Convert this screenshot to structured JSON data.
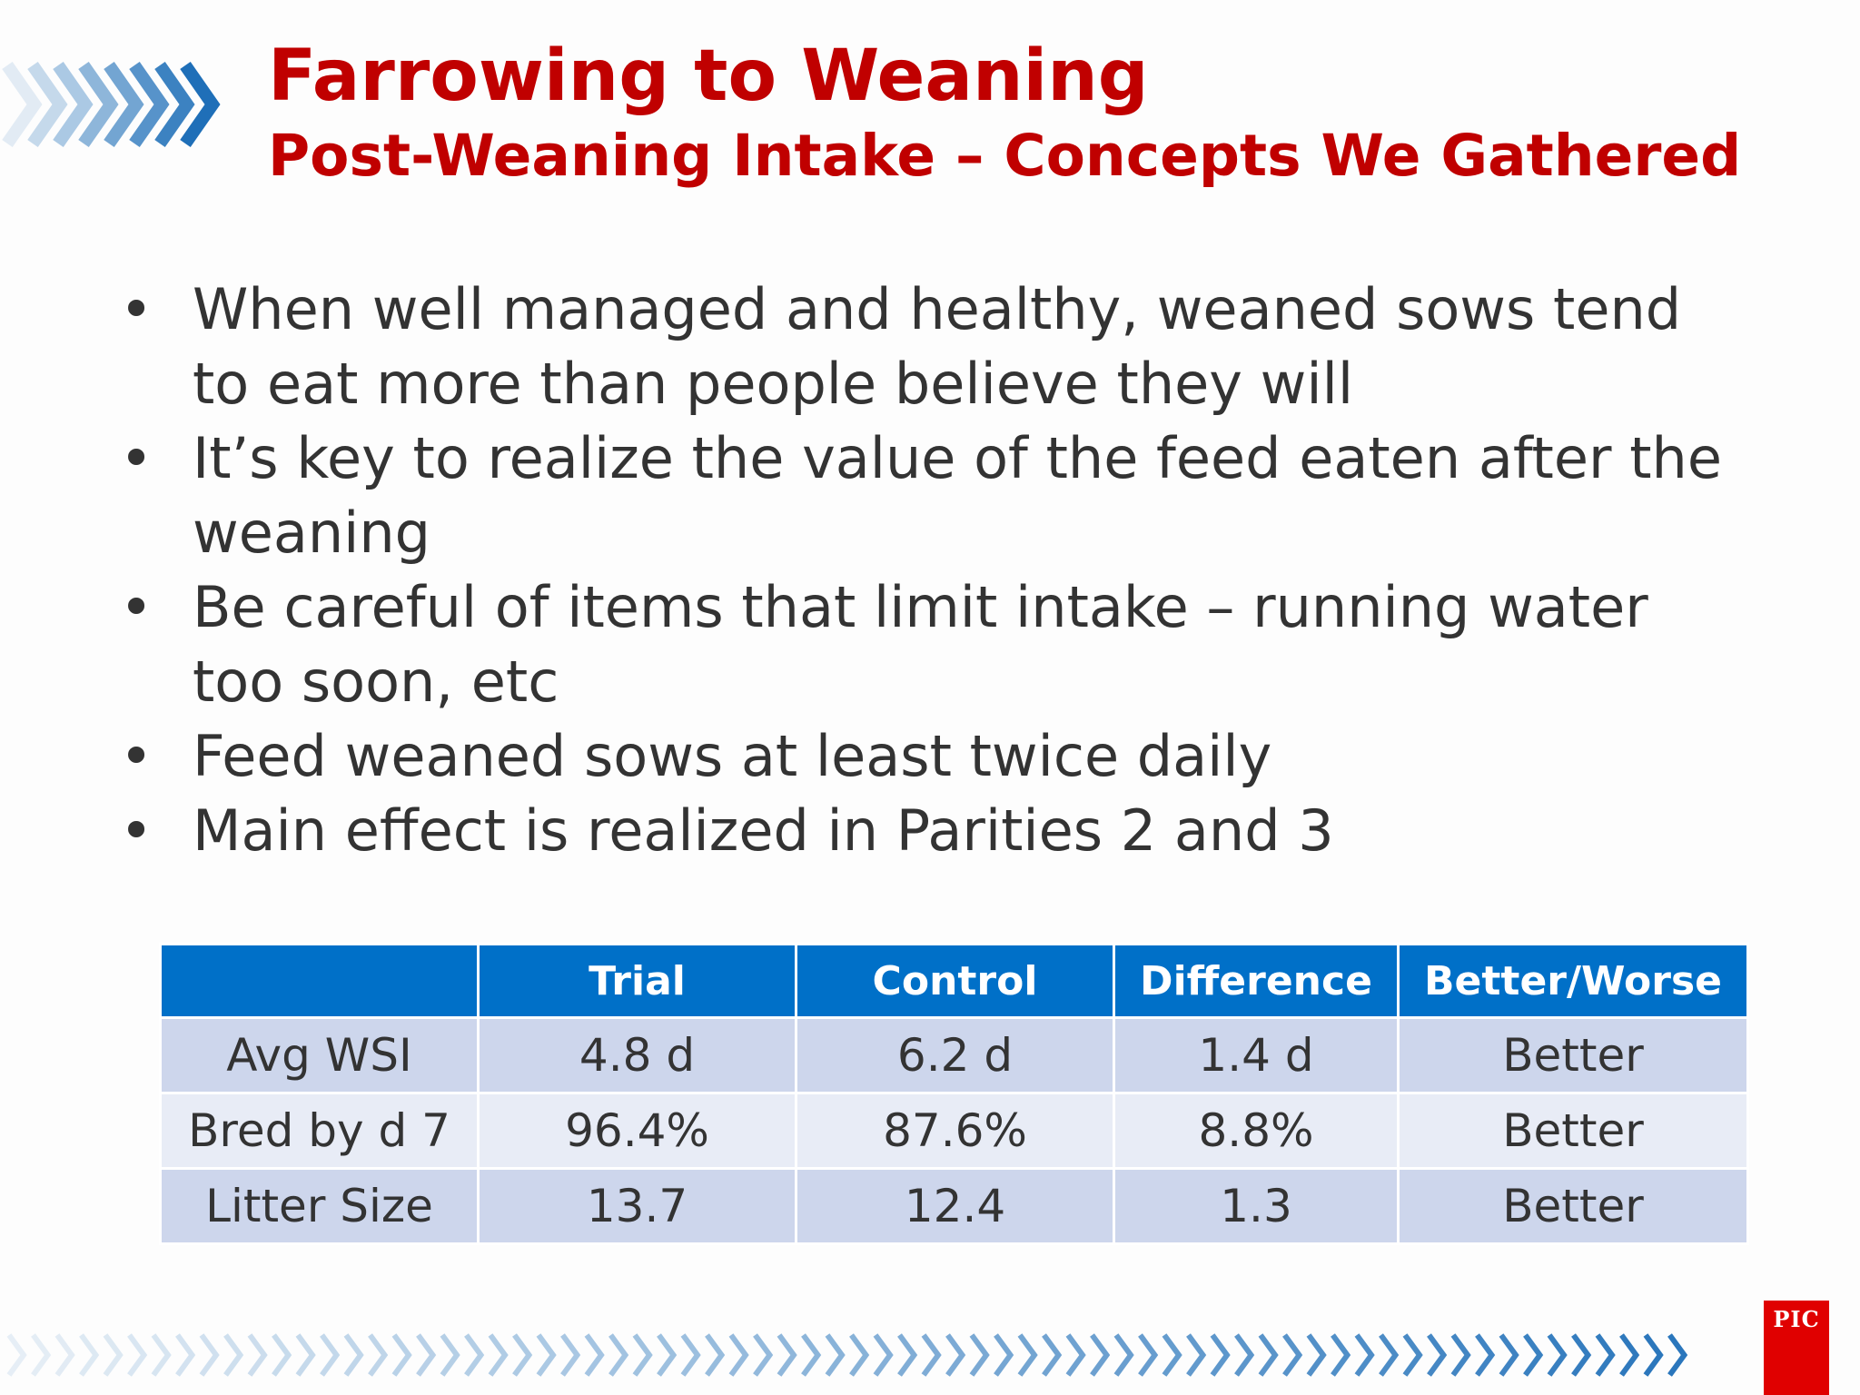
{
  "header": {
    "title": "Farrowing to Weaning",
    "subtitle": "Post-Weaning Intake – Concepts We Gathered"
  },
  "bullets": [
    "When well managed and healthy, weaned sows tend to eat more than people believe they will",
    "It’s key to realize the value of the feed eaten after the weaning",
    "Be careful of items that limit intake – running water too soon, etc",
    "Feed weaned sows at least twice daily",
    "Main effect is realized in Parities 2 and 3"
  ],
  "bullet_marker": "•",
  "table": {
    "headers": [
      "",
      "Trial",
      "Control",
      "Difference",
      "Better/Worse"
    ],
    "rows": [
      [
        "Avg WSI",
        "4.8 d",
        "6.2 d",
        "1.4 d",
        "Better"
      ],
      [
        "Bred by d 7",
        "96.4%",
        "87.6%",
        "8.8%",
        "Better"
      ],
      [
        "Litter Size",
        "13.7",
        "12.4",
        "1.3",
        "Better"
      ]
    ]
  },
  "logo": {
    "text": "PIC"
  },
  "colors": {
    "title_red": "#c00000",
    "header_blue": "#0070c8",
    "row_dark": "#cdd6ec",
    "row_light": "#e8ecf6",
    "chevron_blue": "#1f6fb8",
    "logo_red": "#e00000"
  },
  "icons": {
    "top_decoration": "chevron-arrows-icon",
    "bottom_decoration": "chevron-strip-icon"
  }
}
